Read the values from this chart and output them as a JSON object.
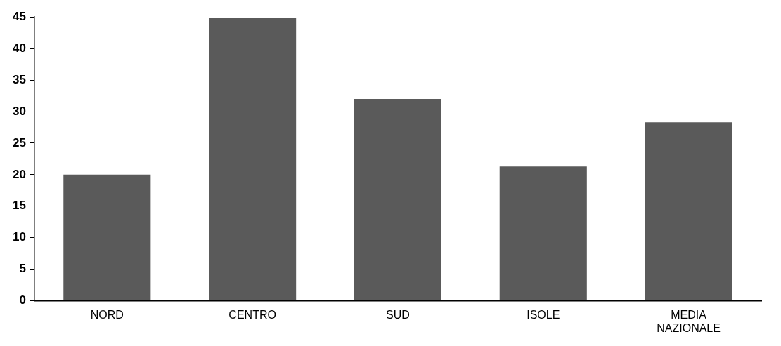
{
  "chart_data": {
    "type": "bar",
    "categories": [
      "NORD",
      "CENTRO",
      "SUD",
      "ISOLE",
      "MEDIA NAZIONALE"
    ],
    "values": [
      20,
      44.8,
      32,
      21.3,
      28.3
    ],
    "color": "#5a5a5a",
    "ylim": [
      0,
      45
    ],
    "yticks": [
      0,
      5,
      10,
      15,
      20,
      25,
      30,
      35,
      40,
      45
    ],
    "grid": false,
    "legend": false
  }
}
